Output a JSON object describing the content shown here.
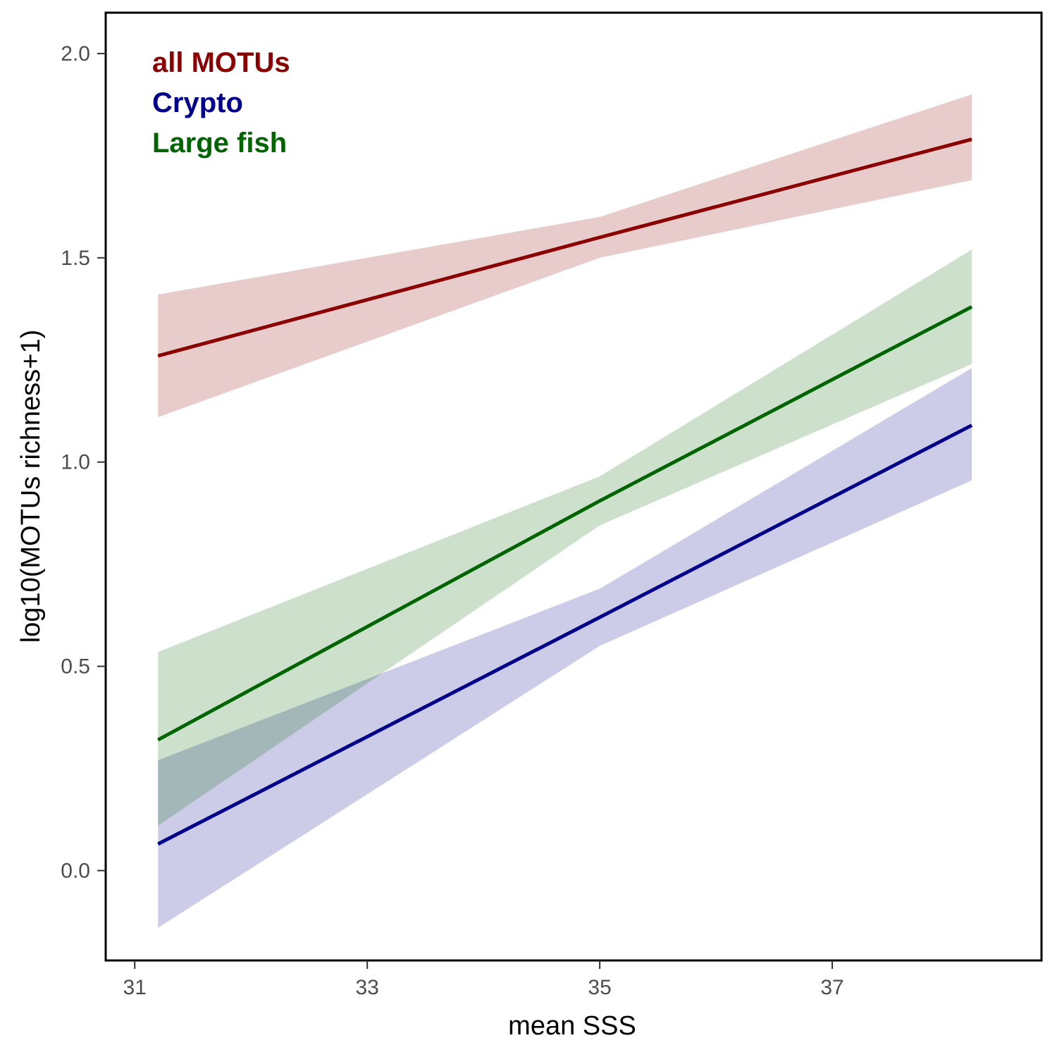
{
  "chart_data": {
    "type": "line",
    "title": "",
    "xlabel": "mean SSS",
    "ylabel": "log10(MOTUs richness+1)",
    "xlim": [
      30.75,
      38.8
    ],
    "ylim": [
      -0.22,
      2.1
    ],
    "x_ticks": [
      31,
      33,
      35,
      37
    ],
    "y_ticks": [
      0.0,
      0.5,
      1.0,
      1.5,
      2.0
    ],
    "x_tick_labels": [
      "31",
      "33",
      "35",
      "37"
    ],
    "y_tick_labels": [
      "0.0",
      "0.5",
      "1.0",
      "1.5",
      "2.0"
    ],
    "grid": false,
    "legend_placement": "top-left",
    "series": [
      {
        "name": "all MOTUs",
        "color": "#8B0000",
        "x": [
          31.2,
          35.0,
          38.2
        ],
        "y": [
          1.26,
          1.55,
          1.79
        ],
        "lower": [
          1.11,
          1.5,
          1.69
        ],
        "upper": [
          1.41,
          1.6,
          1.9
        ]
      },
      {
        "name": "Crypto",
        "color": "#00008B",
        "x": [
          31.2,
          35.0,
          38.2
        ],
        "y": [
          0.065,
          0.62,
          1.09
        ],
        "lower": [
          -0.14,
          0.55,
          0.955
        ],
        "upper": [
          0.27,
          0.69,
          1.23
        ]
      },
      {
        "name": "Large fish",
        "color": "#006400",
        "x": [
          31.2,
          35.0,
          38.2
        ],
        "y": [
          0.32,
          0.905,
          1.38
        ],
        "lower": [
          0.11,
          0.845,
          1.24
        ],
        "upper": [
          0.535,
          0.965,
          1.52
        ]
      }
    ]
  }
}
